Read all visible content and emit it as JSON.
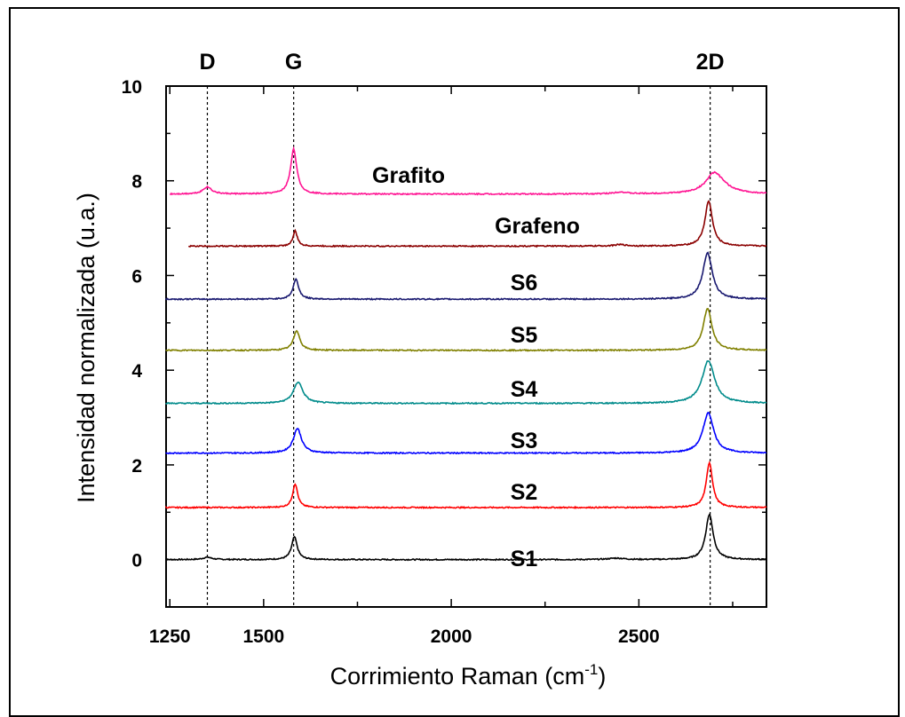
{
  "chart_data": {
    "type": "line",
    "xlabel_main": "Corrimiento Raman (cm",
    "xlabel_sup": "-1",
    "xlabel_end": ")",
    "ylabel": "Intensidad normalizada (u.a.)",
    "xlim": [
      1240,
      2840
    ],
    "ylim": [
      -1,
      10
    ],
    "xticks": [
      1250,
      1500,
      2000,
      2500
    ],
    "xtick_labels": [
      "1250",
      "1500",
      "2000",
      "2500"
    ],
    "yticks": [
      0,
      2,
      4,
      6,
      8,
      10
    ],
    "ytick_labels": [
      "0",
      "2",
      "4",
      "6",
      "8",
      "10"
    ],
    "band_markers": [
      {
        "label": "D",
        "x": 1350
      },
      {
        "label": "G",
        "x": 1580
      },
      {
        "label": "2D",
        "x": 2690
      }
    ],
    "series": [
      {
        "name": "S1",
        "color": "#000000",
        "offset": 0.0,
        "x_start": 1230,
        "peaks": [
          {
            "x": 1350,
            "h": 0.05,
            "w": 14
          },
          {
            "x": 1582,
            "h": 0.48,
            "w": 9
          },
          {
            "x": 2440,
            "h": 0.03,
            "w": 25
          },
          {
            "x": 2688,
            "h": 0.95,
            "w": 12
          }
        ]
      },
      {
        "name": "S2",
        "color": "#ff0000",
        "offset": 1.1,
        "x_start": 1230,
        "peaks": [
          {
            "x": 1584,
            "h": 0.5,
            "w": 8
          },
          {
            "x": 2688,
            "h": 0.95,
            "w": 10
          }
        ]
      },
      {
        "name": "S3",
        "color": "#0000ff",
        "offset": 2.25,
        "x_start": 1230,
        "peaks": [
          {
            "x": 1590,
            "h": 0.52,
            "w": 13
          },
          {
            "x": 2685,
            "h": 0.85,
            "w": 17
          }
        ]
      },
      {
        "name": "S4",
        "color": "#008b8b",
        "offset": 3.3,
        "x_start": 1230,
        "peaks": [
          {
            "x": 1592,
            "h": 0.45,
            "w": 15
          },
          {
            "x": 2685,
            "h": 0.9,
            "w": 20
          }
        ]
      },
      {
        "name": "S5",
        "color": "#808000",
        "offset": 4.42,
        "x_start": 1230,
        "peaks": [
          {
            "x": 1588,
            "h": 0.42,
            "w": 10
          },
          {
            "x": 2683,
            "h": 0.88,
            "w": 14
          }
        ]
      },
      {
        "name": "S6",
        "color": "#191970",
        "offset": 5.5,
        "x_start": 1230,
        "peaks": [
          {
            "x": 1586,
            "h": 0.42,
            "w": 9
          },
          {
            "x": 2683,
            "h": 0.98,
            "w": 15
          }
        ]
      },
      {
        "name": "Grafeno",
        "color": "#8b0000",
        "offset": 6.62,
        "x_start": 1300,
        "peaks": [
          {
            "x": 1584,
            "h": 0.32,
            "w": 7
          },
          {
            "x": 2450,
            "h": 0.03,
            "w": 20
          },
          {
            "x": 2686,
            "h": 0.95,
            "w": 12
          }
        ]
      },
      {
        "name": "Grafito",
        "color": "#ff1493",
        "offset": 7.72,
        "x_start": 1250,
        "peaks": [
          {
            "x": 1350,
            "h": 0.15,
            "w": 14
          },
          {
            "x": 1580,
            "h": 0.95,
            "w": 10
          },
          {
            "x": 2450,
            "h": 0.04,
            "w": 20
          },
          {
            "x": 2700,
            "h": 0.35,
            "w": 26
          },
          {
            "x": 2715,
            "h": 0.12,
            "w": 40
          }
        ]
      }
    ]
  }
}
